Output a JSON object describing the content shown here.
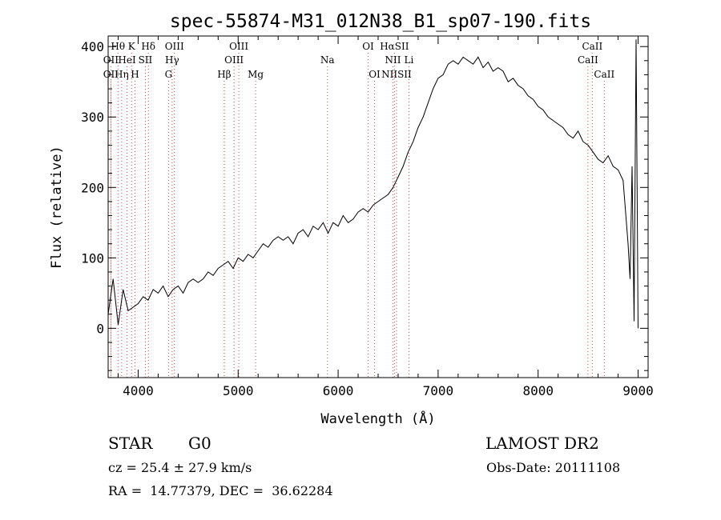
{
  "chart_data": {
    "type": "line",
    "title": "spec-55874-M31_012N38_B1_sp07-190.fits",
    "xlabel": "Wavelength (Å)",
    "ylabel": "Flux (relative)",
    "xlim": [
      3700,
      9100
    ],
    "ylim": [
      -70,
      415
    ],
    "xticks": [
      4000,
      5000,
      6000,
      7000,
      8000,
      9000
    ],
    "yticks": [
      0,
      100,
      200,
      300,
      400
    ],
    "series": [
      {
        "x": [
          3700,
          3750,
          3800,
          3850,
          3900,
          3950,
          4000,
          4050,
          4100,
          4150,
          4200,
          4250,
          4300,
          4350,
          4400,
          4450,
          4500,
          4550,
          4600,
          4650,
          4700,
          4750,
          4800,
          4850,
          4900,
          4950,
          5000,
          5050,
          5100,
          5150,
          5200,
          5250,
          5300,
          5350,
          5400,
          5450,
          5500,
          5550,
          5600,
          5650,
          5700,
          5750,
          5800,
          5850,
          5900,
          5950,
          6000,
          6050,
          6100,
          6150,
          6200,
          6250,
          6300,
          6350,
          6400,
          6450,
          6500,
          6550,
          6600,
          6650,
          6700,
          6750,
          6800,
          6850,
          6900,
          6950,
          7000,
          7050,
          7100,
          7150,
          7200,
          7250,
          7300,
          7350,
          7400,
          7450,
          7500,
          7550,
          7600,
          7650,
          7700,
          7750,
          7800,
          7850,
          7900,
          7950,
          8000,
          8050,
          8100,
          8150,
          8200,
          8250,
          8300,
          8350,
          8400,
          8450,
          8500,
          8550,
          8600,
          8650,
          8700,
          8750,
          8800,
          8850,
          8900,
          8920,
          8940,
          8960,
          8980,
          9000
        ],
        "y": [
          20,
          70,
          5,
          55,
          25,
          30,
          35,
          45,
          40,
          55,
          50,
          60,
          45,
          55,
          60,
          50,
          65,
          70,
          65,
          70,
          80,
          75,
          85,
          90,
          95,
          85,
          100,
          95,
          105,
          100,
          110,
          120,
          115,
          125,
          130,
          125,
          130,
          120,
          135,
          140,
          130,
          145,
          140,
          150,
          135,
          150,
          145,
          160,
          150,
          155,
          165,
          170,
          165,
          175,
          180,
          185,
          190,
          200,
          215,
          230,
          250,
          265,
          285,
          300,
          320,
          340,
          355,
          360,
          375,
          380,
          375,
          385,
          380,
          375,
          385,
          370,
          378,
          365,
          370,
          365,
          350,
          355,
          345,
          340,
          330,
          325,
          315,
          310,
          300,
          295,
          290,
          285,
          275,
          270,
          280,
          265,
          260,
          250,
          240,
          235,
          245,
          230,
          225,
          210,
          120,
          70,
          230,
          10,
          410,
          0
        ]
      }
    ],
    "line_markers": [
      {
        "label": "Hθ",
        "x": 3798,
        "row": 0
      },
      {
        "label": "K",
        "x": 3934,
        "row": 0
      },
      {
        "label": "Hδ",
        "x": 4102,
        "row": 0
      },
      {
        "label": "OIII",
        "x": 4363,
        "row": 0
      },
      {
        "label": "OIII",
        "x": 5007,
        "row": 0
      },
      {
        "label": "OI",
        "x": 6300,
        "row": 0
      },
      {
        "label": "HαSII",
        "x": 6563,
        "row": 0
      },
      {
        "label": "CaII",
        "x": 8542,
        "row": 0
      },
      {
        "label": "OII",
        "x": 3727,
        "row": 1
      },
      {
        "label": "HeI",
        "x": 3889,
        "row": 1
      },
      {
        "label": "SII",
        "x": 4072,
        "row": 1
      },
      {
        "label": "Hγ",
        "x": 4340,
        "row": 1
      },
      {
        "label": "OIII",
        "x": 4959,
        "row": 1
      },
      {
        "label": "Na",
        "x": 5893,
        "row": 1
      },
      {
        "label": "NII",
        "x": 6548,
        "row": 1
      },
      {
        "label": "Li",
        "x": 6708,
        "row": 1
      },
      {
        "label": "CaII",
        "x": 8498,
        "row": 1
      },
      {
        "label": "OII",
        "x": 3727,
        "row": 2
      },
      {
        "label": "Hη",
        "x": 3835,
        "row": 2
      },
      {
        "label": "H",
        "x": 3968,
        "row": 2
      },
      {
        "label": "G",
        "x": 4304,
        "row": 2
      },
      {
        "label": "Hβ",
        "x": 4861,
        "row": 2
      },
      {
        "label": "Mg",
        "x": 5175,
        "row": 2
      },
      {
        "label": "OI",
        "x": 6364,
        "row": 2
      },
      {
        "label": "NIISII",
        "x": 6584,
        "row": 2
      },
      {
        "label": "CaII",
        "x": 8662,
        "row": 2
      }
    ],
    "grid": false
  },
  "footer": {
    "class_label": "STAR",
    "subclass": "G0",
    "survey": "LAMOST DR2",
    "cz_text": "cz = 25.4 ± 27.9 km/s",
    "obs_date": "Obs-Date: 20111108",
    "coords": "RA =  14.77379, DEC =  36.62284"
  }
}
